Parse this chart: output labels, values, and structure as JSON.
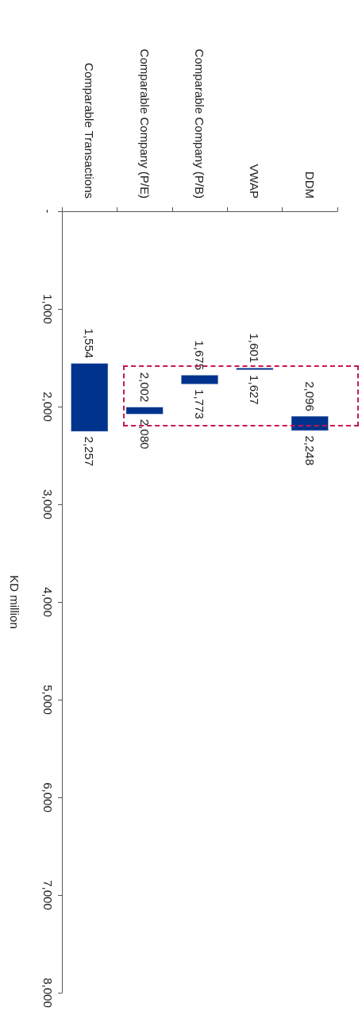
{
  "chart_data": {
    "type": "bar",
    "categories": [
      "Comparable Transactions",
      "Comparable Company (P/E)",
      "Comparable Company (P/B)",
      "VWAP",
      "DDM"
    ],
    "series": [
      {
        "color": "#00338d",
        "base": [
          1554,
          2002,
          1675,
          1601,
          2096
        ],
        "values": [
          703,
          78,
          98,
          26,
          152
        ]
      }
    ],
    "ylabel": "KD million",
    "ylim": [
      8000,
      0
    ],
    "yticks": [
      {
        "value": 0,
        "label": "-"
      },
      {
        "value": 1000,
        "label": "1,000"
      },
      {
        "value": 2000,
        "label": "2,000"
      },
      {
        "value": 3000,
        "label": "3,000"
      },
      {
        "value": 4000,
        "label": "4,000"
      },
      {
        "value": 5000,
        "label": "5,000"
      },
      {
        "value": 6000,
        "label": "6,000"
      },
      {
        "value": 7000,
        "label": "7,000"
      },
      {
        "value": 8000,
        "label": "8,000"
      }
    ],
    "annotations": [
      "1,554",
      "2,257",
      "2,002",
      "2,080",
      "1,675",
      "1,773",
      "1,601",
      "1,627",
      "2,096",
      "2,248"
    ],
    "grid": false
  }
}
